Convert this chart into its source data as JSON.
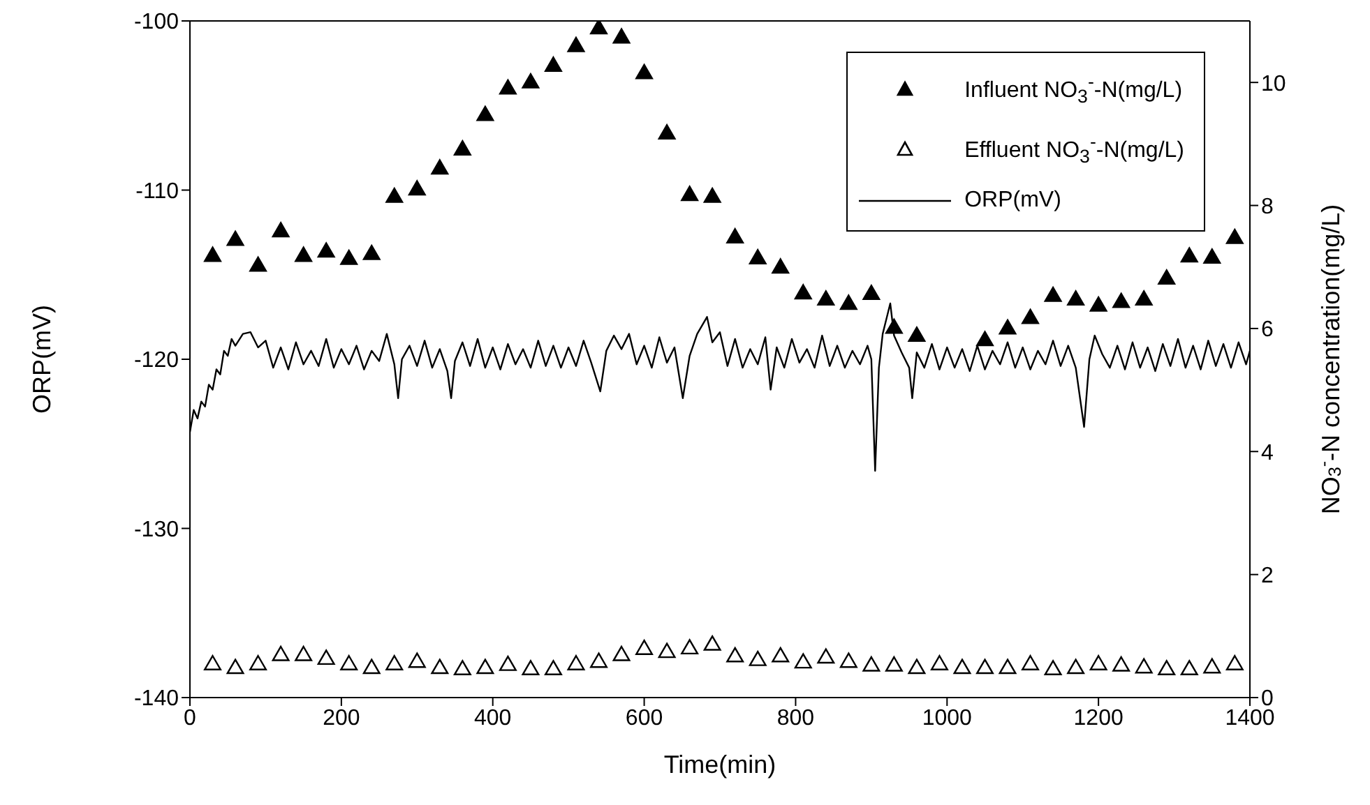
{
  "chart_data": {
    "type": "scatter",
    "xlabel": "Time(min)",
    "ylabel": "ORP(mV)",
    "y2label": "NO$_{3}$$^{-}$-N concentration(mg/L)",
    "xlim": [
      0,
      1400
    ],
    "xticks": [
      0,
      200,
      400,
      600,
      800,
      1000,
      1200,
      1400
    ],
    "ylim": [
      -140,
      -100
    ],
    "yticks": [
      -140,
      -130,
      -120,
      -110,
      -100
    ],
    "y2lim": [
      0,
      11
    ],
    "y2ticks": [
      0,
      2,
      4,
      6,
      8,
      10
    ],
    "legend": "top right",
    "grid": false,
    "series": [
      {
        "name": "Influent NO$_{3}$$^{-}$-N(mg/L)",
        "axis": "y2",
        "marker": "triangle",
        "color": "#000000",
        "x": [
          30,
          60,
          90,
          120,
          150,
          180,
          210,
          240,
          270,
          300,
          330,
          360,
          390,
          420,
          450,
          480,
          510,
          540,
          570,
          600,
          630,
          660,
          690,
          720,
          750,
          780,
          810,
          840,
          870,
          900,
          930,
          960,
          990,
          1020,
          1050,
          1080,
          1110,
          1140,
          1170,
          1200,
          1230,
          1260,
          1290,
          1320,
          1350,
          1380
        ],
        "values": [
          7.17,
          7.43,
          7.01,
          7.57,
          7.17,
          7.24,
          7.12,
          7.2,
          8.13,
          8.25,
          8.59,
          8.9,
          9.46,
          9.89,
          9.99,
          10.26,
          10.58,
          10.87,
          10.72,
          10.14,
          9.16,
          8.16,
          8.13,
          7.47,
          7.13,
          6.98,
          6.56,
          6.46,
          6.39,
          6.55,
          6.0,
          5.87,
          null,
          null,
          5.8,
          5.99,
          6.16,
          6.52,
          6.46,
          6.36,
          6.42,
          6.46,
          6.8,
          7.16,
          7.14,
          7.46
        ]
      },
      {
        "name": "Effluent NO$_{3}$$^{-}$-N(mg/L)",
        "axis": "y2",
        "marker": "triangle-open",
        "color": "#000000",
        "x": [
          30,
          60,
          90,
          120,
          150,
          180,
          210,
          240,
          270,
          300,
          330,
          360,
          390,
          420,
          450,
          480,
          510,
          540,
          570,
          600,
          630,
          660,
          690,
          720,
          750,
          780,
          810,
          840,
          870,
          900,
          930,
          960,
          990,
          1020,
          1050,
          1080,
          1110,
          1140,
          1170,
          1200,
          1230,
          1260,
          1290,
          1320,
          1350,
          1380
        ],
        "values": [
          0.53,
          0.47,
          0.53,
          0.68,
          0.68,
          0.62,
          0.53,
          0.47,
          0.53,
          0.57,
          0.47,
          0.45,
          0.47,
          0.52,
          0.45,
          0.45,
          0.53,
          0.57,
          0.68,
          0.78,
          0.73,
          0.79,
          0.85,
          0.66,
          0.6,
          0.66,
          0.56,
          0.64,
          0.57,
          0.51,
          0.51,
          0.47,
          0.53,
          0.47,
          0.47,
          0.47,
          0.53,
          0.45,
          0.47,
          0.53,
          0.51,
          0.48,
          0.45,
          0.45,
          0.48,
          0.53
        ]
      },
      {
        "name": "ORP(mV)",
        "type": "line",
        "axis": "y",
        "marker": "none",
        "line_style": "solid",
        "color": "#000000",
        "x": [
          0,
          5,
          10,
          15,
          20,
          25,
          30,
          35,
          40,
          45,
          50,
          55,
          60,
          70,
          80,
          90,
          100,
          110,
          120,
          130,
          140,
          150,
          160,
          170,
          180,
          190,
          200,
          210,
          220,
          230,
          240,
          250,
          260,
          270,
          275,
          280,
          290,
          300,
          310,
          320,
          330,
          340,
          345,
          350,
          360,
          370,
          380,
          390,
          400,
          410,
          420,
          430,
          440,
          450,
          460,
          470,
          480,
          490,
          500,
          510,
          520,
          530,
          542,
          550,
          560,
          570,
          580,
          590,
          600,
          610,
          620,
          630,
          640,
          651,
          660,
          670,
          683,
          690,
          700,
          710,
          720,
          730,
          740,
          750,
          760,
          767,
          775,
          785,
          795,
          805,
          815,
          825,
          835,
          845,
          855,
          865,
          875,
          885,
          895,
          900,
          905,
          910,
          915,
          920,
          925,
          930,
          940,
          950,
          954,
          960,
          970,
          980,
          990,
          1000,
          1010,
          1020,
          1030,
          1040,
          1050,
          1060,
          1070,
          1080,
          1090,
          1100,
          1110,
          1120,
          1130,
          1140,
          1150,
          1160,
          1170,
          1181,
          1188,
          1195,
          1205,
          1215,
          1225,
          1235,
          1245,
          1255,
          1265,
          1275,
          1285,
          1295,
          1305,
          1315,
          1325,
          1335,
          1345,
          1355,
          1365,
          1375,
          1385,
          1395,
          1400
        ],
        "values": [
          -124.3,
          -123,
          -123.5,
          -122.5,
          -122.8,
          -121.5,
          -121.8,
          -120.6,
          -120.9,
          -119.5,
          -119.8,
          -118.8,
          -119.2,
          -118.5,
          -118.4,
          -119.3,
          -118.9,
          -120.5,
          -119.3,
          -120.6,
          -119.0,
          -120.3,
          -119.5,
          -120.4,
          -118.8,
          -120.5,
          -119.4,
          -120.3,
          -119.2,
          -120.6,
          -119.5,
          -120.1,
          -118.5,
          -120.3,
          -122.3,
          -120.0,
          -119.2,
          -120.4,
          -118.9,
          -120.5,
          -119.4,
          -120.7,
          -122.3,
          -120.1,
          -119.0,
          -120.4,
          -118.8,
          -120.5,
          -119.3,
          -120.6,
          -119.1,
          -120.3,
          -119.4,
          -120.5,
          -118.9,
          -120.4,
          -119.2,
          -120.5,
          -119.3,
          -120.4,
          -118.9,
          -120.2,
          -121.9,
          -119.5,
          -118.6,
          -119.4,
          -118.5,
          -120.3,
          -119.2,
          -120.5,
          -118.7,
          -120.2,
          -119.3,
          -122.3,
          -119.8,
          -118.5,
          -117.5,
          -119.0,
          -118.4,
          -120.4,
          -118.8,
          -120.5,
          -119.4,
          -120.3,
          -118.7,
          -121.8,
          -119.3,
          -120.5,
          -118.8,
          -120.2,
          -119.4,
          -120.5,
          -118.6,
          -120.4,
          -119.2,
          -120.5,
          -119.5,
          -120.3,
          -119.2,
          -120.0,
          -126.6,
          -120.5,
          -118.5,
          -117.6,
          -116.7,
          -118.6,
          -119.6,
          -120.5,
          -122.3,
          -119.6,
          -120.5,
          -119.1,
          -120.6,
          -119.3,
          -120.5,
          -119.4,
          -120.7,
          -119.2,
          -120.6,
          -119.5,
          -120.3,
          -119.0,
          -120.5,
          -119.3,
          -120.6,
          -119.5,
          -120.3,
          -118.9,
          -120.4,
          -119.2,
          -120.5,
          -124.0,
          -120.0,
          -118.6,
          -119.7,
          -120.5,
          -119.2,
          -120.6,
          -119.0,
          -120.5,
          -119.3,
          -120.7,
          -119.1,
          -120.4,
          -118.8,
          -120.5,
          -119.2,
          -120.6,
          -118.9,
          -120.4,
          -119.1,
          -120.5,
          -119.0,
          -120.3,
          -119.5
        ]
      }
    ]
  }
}
